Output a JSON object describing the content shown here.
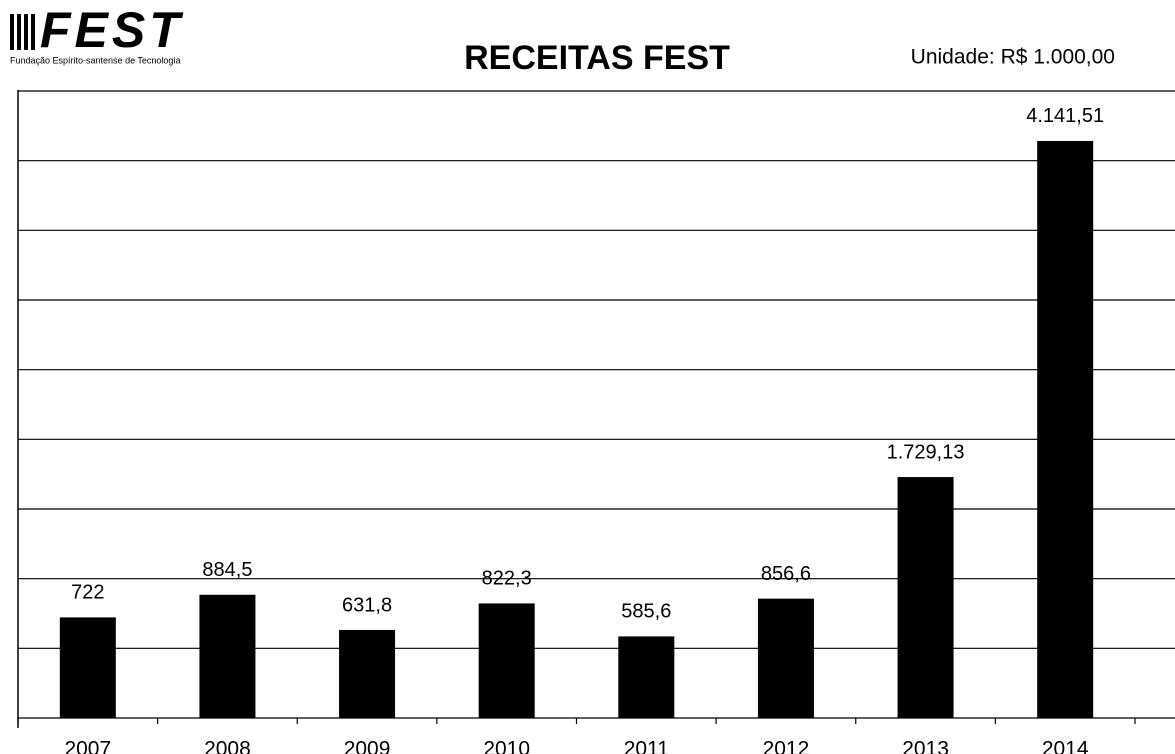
{
  "logo": {
    "name": "FEST",
    "tagline": "Fundação Espírito-santense de Tecnologia"
  },
  "chart_data": {
    "type": "bar",
    "title": "RECEITAS FEST",
    "subtitle": "Unidade: R$ 1.000,00",
    "categories": [
      "2007",
      "2008",
      "2009",
      "2010",
      "2011",
      "2012",
      "2013",
      "2014"
    ],
    "values": [
      722,
      884.5,
      631.8,
      822.3,
      585.6,
      856.6,
      1729.13,
      4141.51
    ],
    "value_labels": [
      "722",
      "884,5",
      "631,8",
      "822,3",
      "585,6",
      "856,6",
      "1.729,13",
      "4.141,51"
    ],
    "color": "#000000",
    "ylim": [
      0,
      4500
    ],
    "yticks": [
      0,
      500,
      1000,
      1500,
      2000,
      2500,
      3000,
      3500,
      4000,
      4500
    ],
    "grid": true
  }
}
